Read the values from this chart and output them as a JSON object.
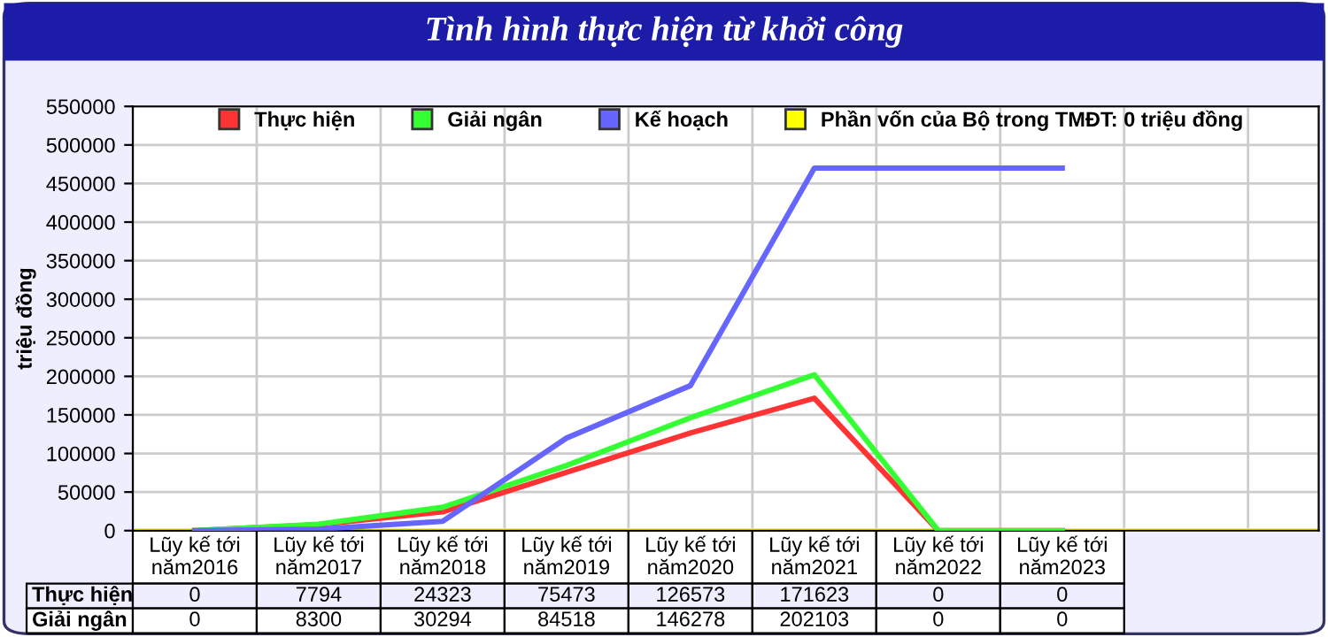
{
  "chart_data": {
    "type": "line",
    "title": "Tình hình thực hiện từ khởi công",
    "ylabel": "triệu đồng",
    "categories": [
      "Lũy kế tới\nnăm2016",
      "Lũy kế tới\nnăm2017",
      "Lũy kế tới\nnăm2018",
      "Lũy kế tới\nnăm2019",
      "Lũy kế tới\nnăm2020",
      "Lũy kế tới\nnăm2021",
      "Lũy kế tới\nnăm2022",
      "Lũy kế tới\nnăm2023"
    ],
    "series": [
      {
        "name": "Thực hiện",
        "color": "#ff3333",
        "values": [
          0,
          7794,
          24323,
          75473,
          126573,
          171623,
          0,
          0
        ],
        "value_labels": [
          "0",
          "7794",
          "24323",
          "75473",
          "126573",
          "171623",
          "0",
          "0"
        ]
      },
      {
        "name": "Giải ngân",
        "color": "#33ff33",
        "values": [
          0,
          8300,
          30294,
          84518,
          146278,
          202103,
          0,
          0
        ],
        "value_labels": [
          "0",
          "8300",
          "30294",
          "84518",
          "146278",
          "202103",
          "0",
          "0"
        ]
      },
      {
        "name": "Kế hoạch",
        "color": "#6666ff",
        "values": [
          0,
          2000,
          12000,
          120000,
          188000,
          470000,
          470000,
          470000
        ]
      }
    ],
    "ref_lines": [
      {
        "axis": "y",
        "value": 0,
        "label": "Phần vốn của Bộ trong TMĐT: 0 triệu đồng",
        "color": "#ffff00"
      }
    ],
    "ylim": [
      0,
      550000
    ],
    "yticks": [
      0,
      50000,
      100000,
      150000,
      200000,
      250000,
      300000,
      350000,
      400000,
      450000,
      500000,
      550000
    ],
    "grid": true,
    "legend": "top"
  }
}
